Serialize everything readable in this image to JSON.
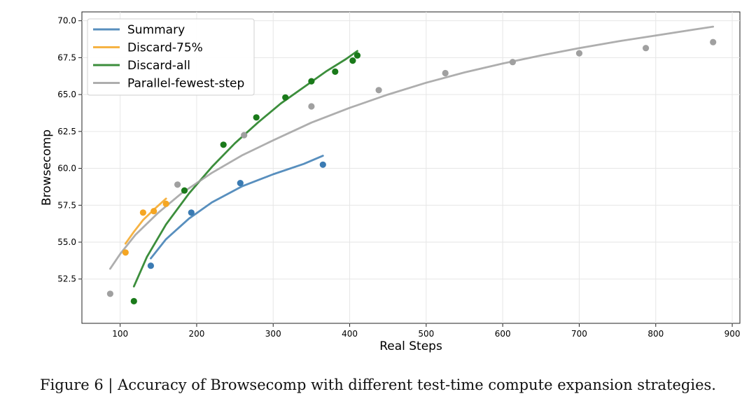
{
  "caption": "Figure 6 | Accuracy of Browsecomp with different test-time compute expansion strategies.",
  "chart_data": {
    "type": "scatter",
    "title": "",
    "xlabel": "Real Steps",
    "ylabel": "Browsecomp",
    "xlim": [
      50,
      910
    ],
    "ylim": [
      49.5,
      70.6
    ],
    "xticks": [
      100,
      200,
      300,
      400,
      500,
      600,
      700,
      800,
      900
    ],
    "yticks": [
      52.5,
      55.0,
      57.5,
      60.0,
      62.5,
      65.0,
      67.5,
      70.0
    ],
    "grid": true,
    "legend_position": "top-left",
    "series": [
      {
        "name": "Summary",
        "color": "#3b7bb3",
        "points": [
          [
            140,
            53.4
          ],
          [
            193,
            57.0
          ],
          [
            257,
            59.0
          ],
          [
            365,
            60.25
          ]
        ],
        "fit_curve": [
          [
            140,
            53.9
          ],
          [
            160,
            55.2
          ],
          [
            190,
            56.6
          ],
          [
            220,
            57.7
          ],
          [
            260,
            58.8
          ],
          [
            300,
            59.6
          ],
          [
            340,
            60.3
          ],
          [
            365,
            60.85
          ]
        ]
      },
      {
        "name": "Discard-75%",
        "color": "#f5a623",
        "points": [
          [
            107,
            54.3
          ],
          [
            130,
            57.0
          ],
          [
            144,
            57.1
          ],
          [
            160,
            57.6
          ]
        ],
        "fit_curve": [
          [
            107,
            54.9
          ],
          [
            118,
            55.7
          ],
          [
            130,
            56.5
          ],
          [
            144,
            57.2
          ],
          [
            160,
            57.95
          ]
        ]
      },
      {
        "name": "Discard-all",
        "color": "#1a7a1a",
        "points": [
          [
            118,
            51.0
          ],
          [
            184,
            58.5
          ],
          [
            235,
            61.6
          ],
          [
            278,
            63.45
          ],
          [
            316,
            64.8
          ],
          [
            350,
            65.9
          ],
          [
            381,
            66.55
          ],
          [
            404,
            67.3
          ],
          [
            410,
            67.65
          ]
        ],
        "fit_curve": [
          [
            118,
            52.0
          ],
          [
            135,
            54.0
          ],
          [
            160,
            56.2
          ],
          [
            190,
            58.3
          ],
          [
            220,
            60.1
          ],
          [
            250,
            61.7
          ],
          [
            280,
            63.1
          ],
          [
            310,
            64.4
          ],
          [
            340,
            65.5
          ],
          [
            370,
            66.6
          ],
          [
            395,
            67.4
          ],
          [
            410,
            67.95
          ]
        ]
      },
      {
        "name": "Parallel-fewest-step",
        "color": "#a0a0a0",
        "points": [
          [
            87,
            51.5
          ],
          [
            175,
            58.9
          ],
          [
            262,
            62.25
          ],
          [
            350,
            64.2
          ],
          [
            438,
            65.3
          ],
          [
            525,
            66.45
          ],
          [
            613,
            67.2
          ],
          [
            700,
            67.8
          ],
          [
            787,
            68.15
          ],
          [
            875,
            68.55
          ]
        ],
        "fit_curve": [
          [
            87,
            53.2
          ],
          [
            100,
            54.2
          ],
          [
            120,
            55.5
          ],
          [
            150,
            57.0
          ],
          [
            180,
            58.3
          ],
          [
            220,
            59.7
          ],
          [
            260,
            60.9
          ],
          [
            300,
            61.9
          ],
          [
            350,
            63.1
          ],
          [
            400,
            64.1
          ],
          [
            450,
            65.0
          ],
          [
            500,
            65.8
          ],
          [
            550,
            66.5
          ],
          [
            600,
            67.1
          ],
          [
            650,
            67.65
          ],
          [
            700,
            68.15
          ],
          [
            750,
            68.6
          ],
          [
            800,
            69.0
          ],
          [
            850,
            69.4
          ],
          [
            875,
            69.6
          ]
        ]
      }
    ]
  }
}
